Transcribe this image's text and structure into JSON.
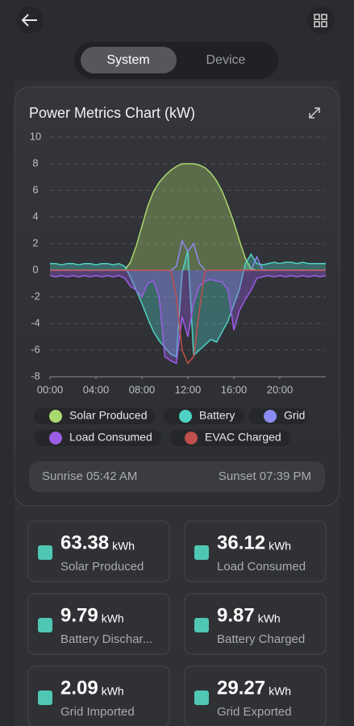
{
  "tabs": [
    "System",
    "Device"
  ],
  "chart_data": {
    "type": "line",
    "title": "Power Metrics Chart (kW)",
    "x": [
      0,
      0.5,
      1,
      1.5,
      2,
      2.5,
      3,
      3.5,
      4,
      4.5,
      5,
      5.5,
      6,
      6.5,
      7,
      7.5,
      8,
      8.5,
      9,
      9.5,
      10,
      10.5,
      11,
      11.5,
      12,
      12.5,
      13,
      13.5,
      14,
      14.5,
      15,
      15.5,
      16,
      16.5,
      17,
      17.5,
      18,
      18.5,
      19,
      19.5,
      20,
      20.5,
      21,
      21.5,
      22,
      22.5,
      23,
      23.5,
      24
    ],
    "xlim": [
      0,
      24
    ],
    "xticks": [
      {
        "value": 0,
        "label": "00:00"
      },
      {
        "value": 4,
        "label": "04:00"
      },
      {
        "value": 8,
        "label": "08:00"
      },
      {
        "value": 12,
        "label": "12:00"
      },
      {
        "value": 16,
        "label": "16:00"
      },
      {
        "value": 20,
        "label": "20:00"
      }
    ],
    "ylim": [
      -8,
      10
    ],
    "yticks": [
      -8,
      -6,
      -4,
      -2,
      0,
      2,
      4,
      6,
      8,
      10
    ],
    "grid": true,
    "series": [
      {
        "name": "Solar Produced",
        "color": "#a9d86e",
        "fill": true,
        "values": [
          0,
          0,
          0,
          0,
          0,
          0,
          0,
          0,
          0,
          0,
          0,
          0,
          0,
          0,
          0.6,
          1.8,
          3.3,
          4.8,
          5.9,
          6.6,
          7.1,
          7.5,
          7.8,
          8,
          8,
          8,
          7.9,
          7.7,
          7.3,
          6.7,
          5.9,
          4.8,
          3.6,
          2.2,
          0.9,
          0.1,
          0,
          0,
          0,
          0,
          0,
          0,
          0,
          0,
          0,
          0,
          0,
          0,
          0
        ]
      },
      {
        "name": "Battery",
        "color": "#4fd1c5",
        "fill": true,
        "values": [
          0.5,
          0.5,
          0.4,
          0.5,
          0.5,
          0.4,
          0.5,
          0.5,
          0.4,
          0.5,
          0.5,
          0.4,
          0.5,
          0.3,
          -0.5,
          -1.5,
          -2.5,
          -3.6,
          -4.6,
          -5.3,
          -5.8,
          -6.3,
          -6.5,
          -0.2,
          1.5,
          -6.4,
          -6,
          -5.6,
          -5.2,
          -5.4,
          -4.6,
          -3.8,
          -2.6,
          -1.4,
          0.5,
          1.2,
          0.5,
          0.4,
          0.5,
          0.6,
          0.5,
          0.6,
          0.6,
          0.5,
          0.6,
          0.5,
          0.5,
          0.5,
          0.5
        ]
      },
      {
        "name": "Grid",
        "color": "#8b8cf0",
        "fill": false,
        "values": [
          0,
          0,
          0,
          0,
          0,
          0,
          0,
          0,
          0,
          0,
          0,
          0,
          0,
          0,
          0,
          0,
          0,
          0,
          0,
          0,
          0,
          0,
          0.3,
          2.2,
          1.4,
          2,
          0.5,
          0,
          0,
          0,
          0,
          0,
          0,
          0,
          0,
          0,
          1,
          0,
          0,
          0,
          0,
          0,
          0,
          0,
          0,
          0,
          0,
          0,
          0
        ]
      },
      {
        "name": "Load Consumed",
        "color": "#9b5de5",
        "fill": true,
        "values": [
          -0.4,
          -0.5,
          -0.4,
          -0.5,
          -0.4,
          -0.5,
          -0.4,
          -0.5,
          -0.4,
          -0.5,
          -0.4,
          -0.5,
          -0.4,
          -0.6,
          -1.2,
          -1.5,
          -2,
          -1,
          -0.8,
          -2,
          -6.5,
          -6.8,
          -7,
          -3.5,
          -5,
          -2.5,
          -1.2,
          -0.8,
          -0.7,
          -0.8,
          -0.9,
          -1.5,
          -4.5,
          -3,
          -2.2,
          -1.5,
          -0.6,
          -0.5,
          -0.4,
          -0.5,
          -0.4,
          -0.5,
          -0.4,
          -0.5,
          -0.4,
          -0.5,
          -0.4,
          -0.5,
          -0.4
        ]
      },
      {
        "name": "EVAC Charged",
        "color": "#c0504d",
        "fill": false,
        "values": [
          0,
          0,
          0,
          0,
          0,
          0,
          0,
          0,
          0,
          0,
          0,
          0,
          0,
          0,
          0,
          0,
          0,
          0,
          0,
          0,
          0,
          0,
          -2,
          -6,
          -7,
          -6.5,
          -3,
          0,
          0,
          0,
          0,
          0,
          0,
          0,
          0,
          0,
          0,
          0,
          0,
          0,
          0,
          0,
          0,
          0,
          0,
          0,
          0,
          0,
          0
        ]
      }
    ]
  },
  "sun": {
    "sunrise": "Sunrise 05:42 AM",
    "sunset": "Sunset 07:39 PM"
  },
  "stats": [
    {
      "value": "63.38",
      "unit": "kWh",
      "label": "Solar Produced"
    },
    {
      "value": "36.12",
      "unit": "kWh",
      "label": "Load Consumed"
    },
    {
      "value": "9.79",
      "unit": "kWh",
      "label": "Battery Dischar..."
    },
    {
      "value": "9.87",
      "unit": "kWh",
      "label": "Battery Charged"
    },
    {
      "value": "2.09",
      "unit": "kWh",
      "label": "Grid Imported"
    },
    {
      "value": "29.27",
      "unit": "kWh",
      "label": "Grid Exported"
    }
  ]
}
